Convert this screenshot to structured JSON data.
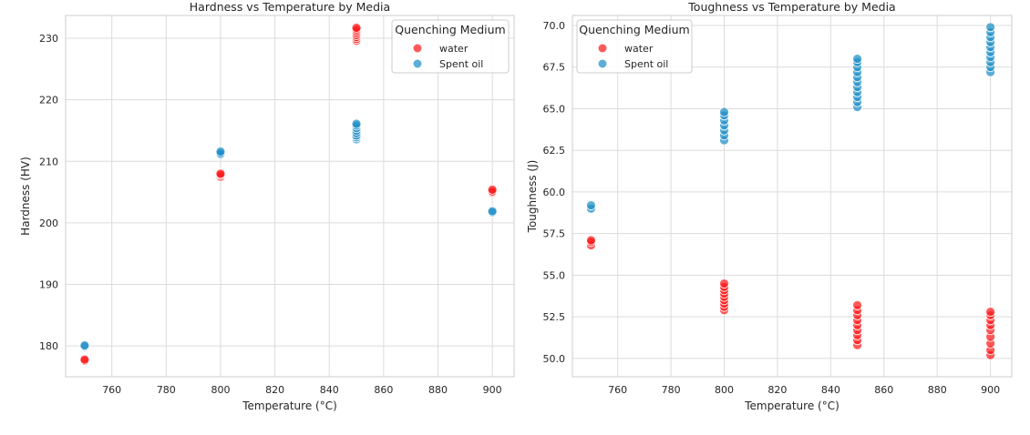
{
  "chart_data": [
    {
      "type": "scatter",
      "title": "Hardness vs Temperature by Media",
      "xlabel": "Temperature (°C)",
      "ylabel": "Hardness (HV)",
      "xlim": [
        743,
        908
      ],
      "ylim": [
        175,
        233.7
      ],
      "xticks": [
        760,
        780,
        800,
        820,
        840,
        860,
        880,
        900
      ],
      "yticks": [
        180,
        190,
        200,
        210,
        220,
        230
      ],
      "grid": true,
      "legend": {
        "title": "Quenching Medium",
        "placement": "top-right",
        "entries": [
          "water",
          "Spent oil"
        ]
      },
      "series": [
        {
          "name": "water",
          "color": "#ff1a1a",
          "points": [
            [
              750,
              177.6
            ],
            [
              750,
              177.8
            ],
            [
              800,
              207.5
            ],
            [
              800,
              207.8
            ],
            [
              800,
              208.0
            ],
            [
              850,
              229.6
            ],
            [
              850,
              229.9
            ],
            [
              850,
              230.2
            ],
            [
              850,
              230.5
            ],
            [
              850,
              230.8
            ],
            [
              850,
              231.1
            ],
            [
              850,
              231.4
            ],
            [
              850,
              231.7
            ],
            [
              900,
              204.9
            ],
            [
              900,
              205.1
            ],
            [
              900,
              205.4
            ]
          ]
        },
        {
          "name": "Spent oil",
          "color": "#1f8fc8",
          "points": [
            [
              750,
              179.9
            ],
            [
              750,
              180.1
            ],
            [
              800,
              211.1
            ],
            [
              800,
              211.3
            ],
            [
              800,
              211.6
            ],
            [
              850,
              213.6
            ],
            [
              850,
              213.9
            ],
            [
              850,
              214.2
            ],
            [
              850,
              214.6
            ],
            [
              850,
              215.0
            ],
            [
              850,
              215.4
            ],
            [
              850,
              215.8
            ],
            [
              850,
              216.1
            ],
            [
              900,
              201.7
            ],
            [
              900,
              201.9
            ]
          ]
        }
      ]
    },
    {
      "type": "scatter",
      "title": "Toughness vs Temperature by Media",
      "xlabel": "Temperature (°C)",
      "ylabel": "Toughness (J)",
      "xlim": [
        743,
        908
      ],
      "ylim": [
        48.9,
        70.6
      ],
      "xticks": [
        760,
        780,
        800,
        820,
        840,
        860,
        880,
        900
      ],
      "yticks": [
        50.0,
        52.5,
        55.0,
        57.5,
        60.0,
        62.5,
        65.0,
        67.5,
        70.0
      ],
      "grid": true,
      "legend": {
        "title": "Quenching Medium",
        "placement": "top-left",
        "entries": [
          "water",
          "Spent oil"
        ]
      },
      "series": [
        {
          "name": "water",
          "color": "#ff1a1a",
          "points": [
            [
              750,
              56.8
            ],
            [
              750,
              57.0
            ],
            [
              750,
              57.1
            ],
            [
              800,
              52.9
            ],
            [
              800,
              53.1
            ],
            [
              800,
              53.3
            ],
            [
              800,
              53.5
            ],
            [
              800,
              53.7
            ],
            [
              800,
              53.9
            ],
            [
              800,
              54.1
            ],
            [
              800,
              54.3
            ],
            [
              800,
              54.5
            ],
            [
              850,
              50.8
            ],
            [
              850,
              51.1
            ],
            [
              850,
              51.4
            ],
            [
              850,
              51.7
            ],
            [
              850,
              52.0
            ],
            [
              850,
              52.3
            ],
            [
              850,
              52.6
            ],
            [
              850,
              52.9
            ],
            [
              850,
              53.2
            ],
            [
              900,
              50.2
            ],
            [
              900,
              50.5
            ],
            [
              900,
              50.9
            ],
            [
              900,
              51.3
            ],
            [
              900,
              51.7
            ],
            [
              900,
              52.0
            ],
            [
              900,
              52.3
            ],
            [
              900,
              52.6
            ],
            [
              900,
              52.8
            ]
          ]
        },
        {
          "name": "Spent oil",
          "color": "#1f8fc8",
          "points": [
            [
              750,
              59.0
            ],
            [
              750,
              59.2
            ],
            [
              800,
              63.1
            ],
            [
              800,
              63.4
            ],
            [
              800,
              63.7
            ],
            [
              800,
              64.0
            ],
            [
              800,
              64.3
            ],
            [
              800,
              64.6
            ],
            [
              800,
              64.8
            ],
            [
              850,
              65.1
            ],
            [
              850,
              65.4
            ],
            [
              850,
              65.7
            ],
            [
              850,
              66.0
            ],
            [
              850,
              66.3
            ],
            [
              850,
              66.6
            ],
            [
              850,
              66.9
            ],
            [
              850,
              67.2
            ],
            [
              850,
              67.5
            ],
            [
              850,
              67.8
            ],
            [
              850,
              68.0
            ],
            [
              900,
              67.2
            ],
            [
              900,
              67.5
            ],
            [
              900,
              67.8
            ],
            [
              900,
              68.1
            ],
            [
              900,
              68.4
            ],
            [
              900,
              68.7
            ],
            [
              900,
              69.0
            ],
            [
              900,
              69.3
            ],
            [
              900,
              69.6
            ],
            [
              900,
              69.9
            ]
          ]
        }
      ]
    }
  ]
}
